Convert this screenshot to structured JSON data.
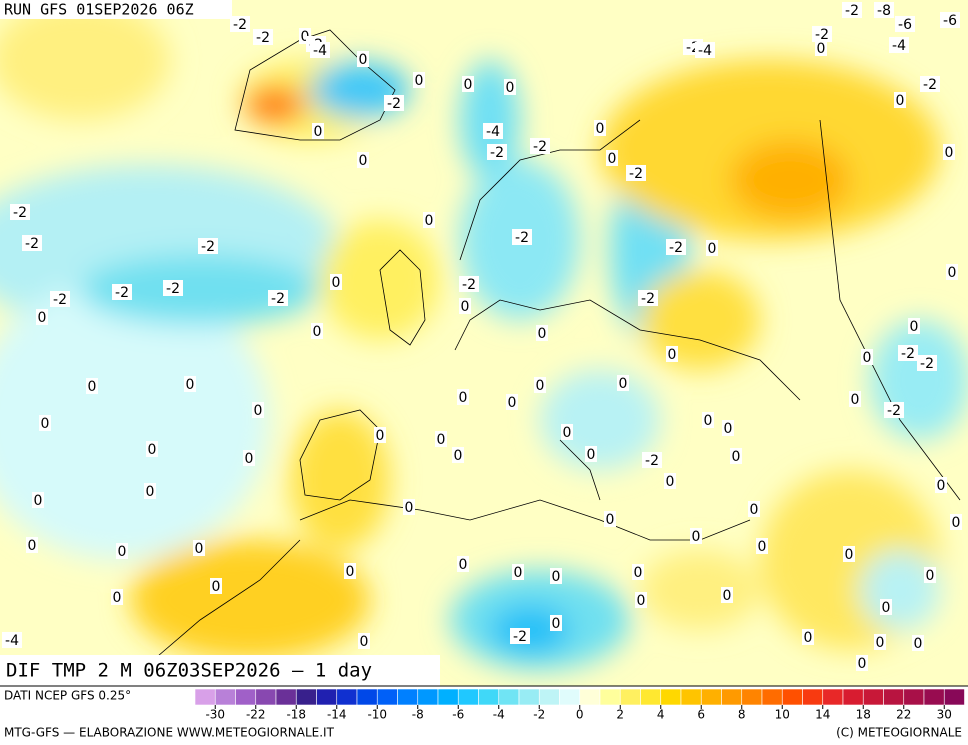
{
  "header": {
    "run": "RUN GFS 01SEP2026 06Z"
  },
  "title": "DIF TMP 2 M 06Z03SEP2026 — 1 day",
  "source": "DATI NCEP GFS 0.25°",
  "footer": {
    "left": "MTG-GFS — ELABORAZIONE WWW.METEOGIORNALE.IT",
    "right": "(C) METEOGIORNALE"
  },
  "colorbar": {
    "ticks": [
      -30,
      -22,
      -18,
      -14,
      -10,
      -8,
      -6,
      -4,
      -2,
      0,
      2,
      4,
      6,
      8,
      10,
      14,
      18,
      22,
      30
    ],
    "colors": [
      "#d8a0e8",
      "#b880d8",
      "#a060c8",
      "#8848b0",
      "#6a3098",
      "#38208c",
      "#2020b0",
      "#1030d0",
      "#0048e8",
      "#0060f8",
      "#0080ff",
      "#0098ff",
      "#00b0ff",
      "#20c8ff",
      "#40d8f8",
      "#70e4f4",
      "#98ecf4",
      "#bef4f6",
      "#e0fcfc",
      "#ffffd8",
      "#ffff9c",
      "#fff060",
      "#ffe830",
      "#ffd800",
      "#ffc400",
      "#ffb000",
      "#ff9a00",
      "#ff8400",
      "#ff6c00",
      "#ff5000",
      "#f83a10",
      "#e82828",
      "#d81c30",
      "#c81838",
      "#b81440",
      "#a81048",
      "#980c50",
      "#880858"
    ]
  },
  "map_labels": [
    -2,
    -2,
    0,
    -2,
    -4,
    0,
    -2,
    -8,
    -6,
    -6,
    -2,
    -4,
    -2,
    -4,
    0,
    0,
    0,
    0,
    -2,
    -2,
    0,
    0,
    -4,
    0,
    -2,
    -2,
    0,
    0,
    -2,
    0,
    -2,
    -2,
    0,
    -2,
    -2,
    -2,
    0,
    0,
    -2,
    0,
    -2,
    -2,
    -2,
    -2,
    0,
    -2,
    0,
    0,
    0,
    0,
    -2,
    -2,
    0,
    0,
    0,
    0,
    0,
    0,
    0,
    0,
    0,
    -2,
    0,
    0,
    0,
    0,
    0,
    0,
    0,
    0,
    0,
    0,
    0,
    -2,
    0,
    0,
    0,
    0,
    0,
    0,
    0,
    0,
    0,
    0,
    0,
    0,
    0,
    0,
    0,
    0,
    0,
    0,
    0,
    0,
    0,
    0,
    0,
    0,
    0,
    0,
    -2,
    -4,
    0,
    0,
    0,
    0,
    0,
    0
  ]
}
